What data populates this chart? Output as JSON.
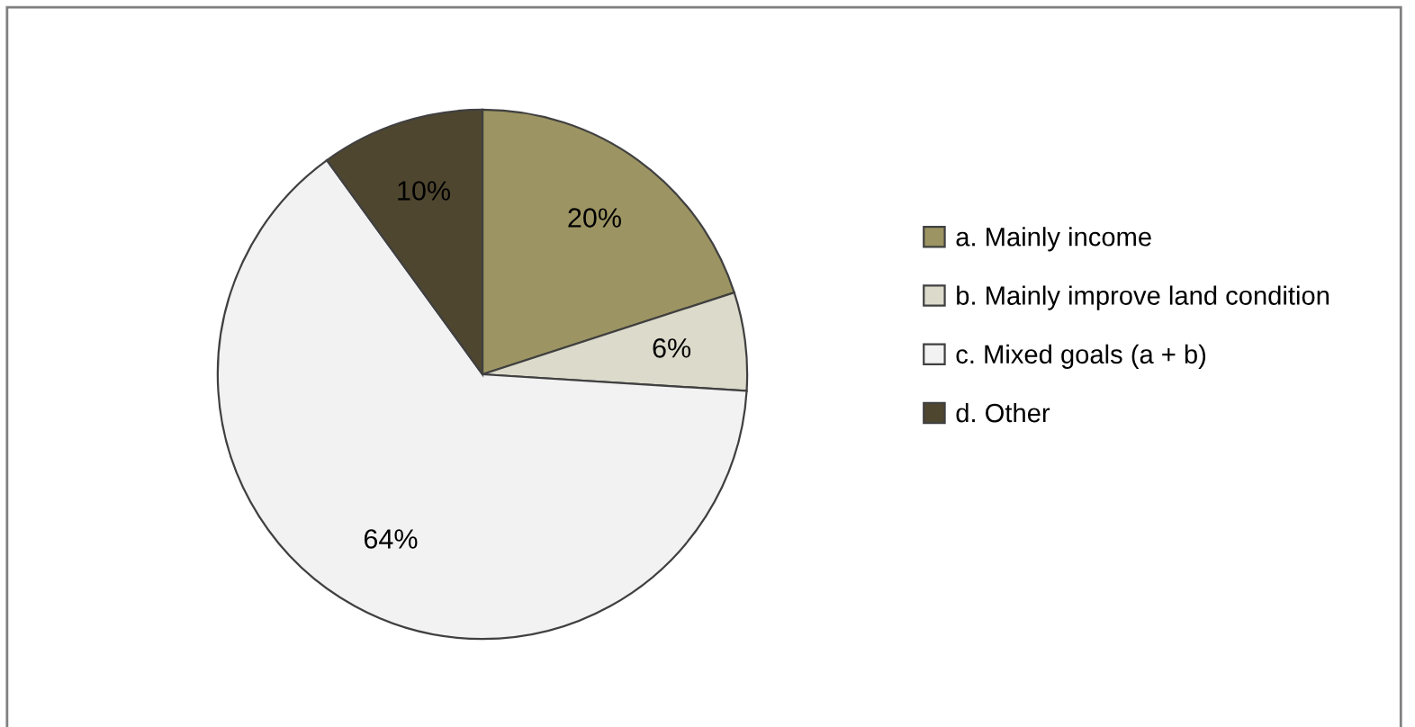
{
  "chart_data": {
    "type": "pie",
    "categories": [
      "a. Mainly income",
      "b. Mainly improve land condition",
      "c. Mixed goals (a + b)",
      "d. Other"
    ],
    "values": [
      20,
      6,
      64,
      10
    ],
    "colors": [
      "#9c9462",
      "#dcdacb",
      "#f2f2f2",
      "#4f4630"
    ],
    "value_labels": [
      "20%",
      "6%",
      "64%",
      "10%"
    ],
    "legend": "right"
  }
}
